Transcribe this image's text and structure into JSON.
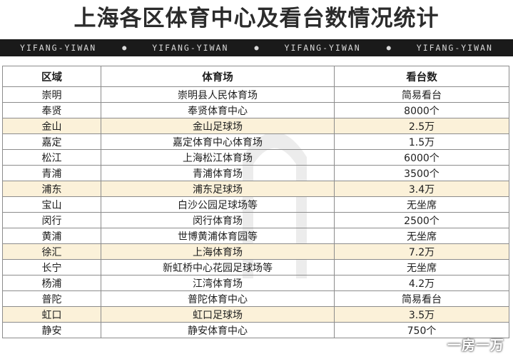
{
  "title": "上海各区体育中心及看台数情况统计",
  "banner": {
    "items": [
      "YIFANG-YIWAN",
      "YIFANG-YIWAN",
      "YIFANG-YIWAN",
      "YIFANG-YIWAN"
    ],
    "separator": "●"
  },
  "table": {
    "headers": [
      "区域",
      "体育场",
      "看台数"
    ],
    "rows": [
      {
        "district": "崇明",
        "venue": "崇明县人民体育场",
        "seats": "简易看台",
        "highlight": false
      },
      {
        "district": "奉贤",
        "venue": "奉贤体育中心",
        "seats": "8000个",
        "highlight": false
      },
      {
        "district": "金山",
        "venue": "金山足球场",
        "seats": "2.5万",
        "highlight": true
      },
      {
        "district": "嘉定",
        "venue": "嘉定体育中心体育场",
        "seats": "1.5万",
        "highlight": false
      },
      {
        "district": "松江",
        "venue": "上海松江体育场",
        "seats": "6000个",
        "highlight": false
      },
      {
        "district": "青浦",
        "venue": "青浦体育场",
        "seats": "3500个",
        "highlight": false
      },
      {
        "district": "浦东",
        "venue": "浦东足球场",
        "seats": "3.4万",
        "highlight": true
      },
      {
        "district": "宝山",
        "venue": "白沙公园足球场等",
        "seats": "无坐席",
        "highlight": false
      },
      {
        "district": "闵行",
        "venue": "闵行体育场",
        "seats": "2500个",
        "highlight": false
      },
      {
        "district": "黄浦",
        "venue": "世博黄浦体育园等",
        "seats": "无坐席",
        "highlight": false
      },
      {
        "district": "徐汇",
        "venue": "上海体育场",
        "seats": "7.2万",
        "highlight": true
      },
      {
        "district": "长宁",
        "venue": "新虹桥中心花园足球场等",
        "seats": "无坐席",
        "highlight": false
      },
      {
        "district": "杨浦",
        "venue": "江湾体育场",
        "seats": "4.2万",
        "highlight": false
      },
      {
        "district": "普陀",
        "venue": "普陀体育中心",
        "seats": "简易看台",
        "highlight": false
      },
      {
        "district": "虹口",
        "venue": "虹口足球场",
        "seats": "3.5万",
        "highlight": true
      },
      {
        "district": "静安",
        "venue": "静安体育中心",
        "seats": "750个",
        "highlight": false
      }
    ]
  },
  "watermark": "一房一万",
  "colors": {
    "highlight_row": "#fbf1d9",
    "banner_bg": "#1a1a1a"
  }
}
